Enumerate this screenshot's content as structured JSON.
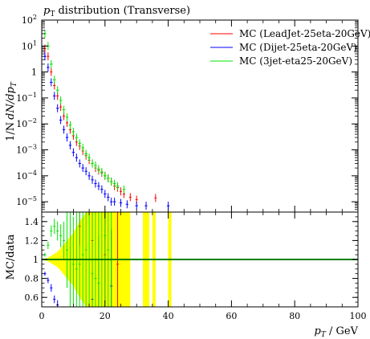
{
  "chart_data": [
    {
      "type": "scatter",
      "panel": "main",
      "title": "pT distribution (Transverse)",
      "title_parts": {
        "italic": "p",
        "sub": "T",
        "rest": " distribution (Transverse)"
      },
      "ylabel": "1/N dN/dpT",
      "ylabel_parts": {
        "a": "1/N",
        "b": "dN/dp",
        "sub": "T"
      },
      "yscale": "log",
      "ylim": [
        4e-06,
        100
      ],
      "xlim": [
        0,
        100
      ],
      "grid": false,
      "legend_position": "top-right",
      "yticks": [
        {
          "v": 100,
          "base": "10",
          "exp": "2"
        },
        {
          "v": 10,
          "base": "10",
          "exp": "1"
        },
        {
          "v": 1,
          "base": "1",
          "exp": ""
        },
        {
          "v": 0.1,
          "base": "10",
          "exp": "−1"
        },
        {
          "v": 0.01,
          "base": "10",
          "exp": "−2"
        },
        {
          "v": 0.001,
          "base": "10",
          "exp": "−3"
        },
        {
          "v": 0.0001,
          "base": "10",
          "exp": "−4"
        },
        {
          "v": 1e-05,
          "base": "10",
          "exp": "−5"
        }
      ],
      "series": [
        {
          "name": "MC (LeadJet-25eta-20GeV)",
          "color": "#ff0000",
          "points": [
            [
              1.0,
              8.0,
              0.0
            ],
            [
              2.0,
              4.0,
              0.0
            ],
            [
              3.0,
              1.0,
              0.0
            ],
            [
              4.0,
              0.3,
              0.0
            ],
            [
              5.0,
              0.12,
              0.0
            ],
            [
              6.0,
              0.045,
              0.0
            ],
            [
              7.0,
              0.02,
              0.0
            ],
            [
              8.0,
              0.011,
              0.0
            ],
            [
              9.0,
              0.006,
              0.0
            ],
            [
              10.0,
              0.0035,
              0.0
            ],
            [
              11.0,
              0.002,
              0.0
            ],
            [
              12.0,
              0.0014,
              0.0
            ],
            [
              13.0,
              0.0009,
              0.0
            ],
            [
              14.0,
              0.0006,
              0.0
            ],
            [
              15.0,
              0.0004,
              0.0
            ],
            [
              16.0,
              0.0003,
              0.0
            ],
            [
              17.0,
              0.0002,
              0.0
            ],
            [
              18.0,
              0.00016,
              0.0
            ],
            [
              19.0,
              0.00013,
              0.0
            ],
            [
              20.0,
              0.0001,
              0.0
            ],
            [
              21.0,
              8e-05,
              0.0
            ],
            [
              22.0,
              6e-05,
              0.0
            ],
            [
              23.0,
              4e-05,
              0.0
            ],
            [
              24.0,
              3.5e-05,
              0.0
            ],
            [
              25.0,
              2.5e-05,
              0.0
            ],
            [
              26.0,
              2e-05,
              0.0
            ],
            [
              28.0,
              1.5e-05,
              0.0
            ],
            [
              30.0,
              1.2e-05,
              0.0
            ],
            [
              36.0,
              1.4e-05,
              0.0
            ]
          ]
        },
        {
          "name": "MC (Dijet-25eta-20GeV)",
          "color": "#0000ff",
          "points": [
            [
              1.0,
              4.0,
              0.0
            ],
            [
              2.0,
              1.5,
              0.0
            ],
            [
              3.0,
              0.4,
              0.0
            ],
            [
              4.0,
              0.12,
              0.0
            ],
            [
              5.0,
              0.04,
              0.0
            ],
            [
              6.0,
              0.014,
              0.0
            ],
            [
              7.0,
              0.006,
              0.0
            ],
            [
              8.0,
              0.003,
              0.0
            ],
            [
              9.0,
              0.0015,
              0.0
            ],
            [
              10.0,
              0.0008,
              0.0
            ],
            [
              11.0,
              0.0005,
              0.0
            ],
            [
              12.0,
              0.0003,
              0.0
            ],
            [
              13.0,
              0.0002,
              0.0
            ],
            [
              14.0,
              0.00015,
              0.0
            ],
            [
              15.0,
              0.0001,
              0.0
            ],
            [
              16.0,
              7e-05,
              0.0
            ],
            [
              17.0,
              5e-05,
              0.0
            ],
            [
              18.0,
              4e-05,
              0.0
            ],
            [
              19.0,
              3e-05,
              0.0
            ],
            [
              20.0,
              2e-05,
              0.0
            ],
            [
              21.0,
              1.5e-05,
              0.0
            ],
            [
              22.0,
              1e-05,
              0.0
            ],
            [
              23.0,
              1e-05,
              0.0
            ],
            [
              25.0,
              9e-06,
              0.0
            ],
            [
              27.0,
              8e-06,
              0.0
            ],
            [
              30.0,
              7e-06,
              0.0
            ],
            [
              33.0,
              7e-06,
              0.0
            ],
            [
              40.0,
              7e-06,
              0.0
            ]
          ]
        },
        {
          "name": "MC (3jet-eta25-20GeV)",
          "color": "#00e600",
          "points": [
            [
              1.0,
              30.0,
              0.0
            ],
            [
              2.0,
              10.0,
              0.0
            ],
            [
              3.0,
              2.0,
              0.0
            ],
            [
              4.0,
              0.5,
              0.0
            ],
            [
              5.0,
              0.2,
              0.0
            ],
            [
              6.0,
              0.08,
              0.0
            ],
            [
              7.0,
              0.035,
              0.0
            ],
            [
              8.0,
              0.018,
              0.0
            ],
            [
              9.0,
              0.009,
              0.0
            ],
            [
              10.0,
              0.005,
              0.0
            ],
            [
              11.0,
              0.003,
              0.0
            ],
            [
              12.0,
              0.0018,
              0.0
            ],
            [
              13.0,
              0.0012,
              0.0
            ],
            [
              14.0,
              0.0007,
              0.0
            ],
            [
              15.0,
              0.0005,
              0.0
            ],
            [
              16.0,
              0.0003,
              0.0
            ],
            [
              17.0,
              0.00025,
              0.0
            ],
            [
              18.0,
              0.00018,
              0.0
            ],
            [
              19.0,
              0.00014,
              0.0
            ],
            [
              20.0,
              0.0001,
              0.0
            ],
            [
              21.0,
              8e-05,
              0.0
            ],
            [
              22.0,
              6e-05,
              0.0
            ],
            [
              23.0,
              5e-05,
              0.0
            ],
            [
              24.0,
              4e-05,
              0.0
            ],
            [
              26.0,
              3e-05,
              0.0
            ]
          ]
        }
      ]
    },
    {
      "type": "scatter",
      "panel": "ratio",
      "ylabel": "MC/data",
      "xlabel": "pT / GeV",
      "xlabel_parts": {
        "italic": "p",
        "sub": "T",
        "rest": " / GeV"
      },
      "xlim": [
        0,
        100
      ],
      "ylim": [
        0.5,
        1.5
      ],
      "reference_line": 1,
      "reference_color": "#008000",
      "band_color": "#ffff00",
      "xticks": [
        0,
        20,
        40,
        60,
        80,
        100
      ],
      "xtick_labels": [
        "0",
        "20",
        "40",
        "60",
        "80",
        "100"
      ],
      "yticks": [
        0.6,
        0.8,
        1.0,
        1.2,
        1.4
      ],
      "ytick_labels": [
        "0.6",
        "0.8",
        "1",
        "1.2",
        "1.4"
      ],
      "band": [
        [
          0.0,
          1.0,
          1.0,
          1.0
        ],
        [
          1.0,
          1.0,
          0.99,
          1.01
        ],
        [
          2.0,
          1.0,
          0.98,
          1.02
        ],
        [
          3.0,
          1.0,
          0.96,
          1.04
        ],
        [
          4.0,
          1.0,
          0.94,
          1.06
        ],
        [
          5.0,
          1.0,
          0.92,
          1.08
        ],
        [
          6.0,
          1.0,
          0.88,
          1.12
        ],
        [
          7.0,
          1.0,
          0.84,
          1.16
        ],
        [
          8.0,
          1.0,
          0.8,
          1.2
        ],
        [
          9.0,
          1.0,
          0.76,
          1.24
        ],
        [
          10.0,
          1.0,
          0.72,
          1.28
        ],
        [
          11.0,
          1.0,
          0.66,
          1.34
        ],
        [
          12.0,
          1.0,
          0.6,
          1.4
        ],
        [
          13.0,
          1.0,
          0.55,
          1.45
        ],
        [
          14.0,
          1.0,
          0.5,
          1.5
        ],
        [
          27.0,
          1.0,
          0.5,
          1.5
        ],
        [
          28.0,
          1.0,
          0.5,
          1.5
        ]
      ],
      "band_blocks": [
        [
          32.0,
          34.0
        ],
        [
          35.0,
          36.0
        ],
        [
          40.0,
          41.0
        ]
      ],
      "series": [
        {
          "name": "MC (LeadJet-25eta-20GeV)",
          "color": "#ff0000",
          "points": [
            [
              12.0,
              1.35,
              0.2
            ],
            [
              16.0,
              1.2,
              0.4
            ],
            [
              20.0,
              1.05,
              0.5
            ],
            [
              24.0,
              0.95,
              0.6
            ]
          ]
        },
        {
          "name": "MC (Dijet-25eta-20GeV)",
          "color": "#0000ff",
          "points": [
            [
              1.0,
              0.85,
              0.02
            ],
            [
              2.0,
              0.78,
              0.03
            ],
            [
              3.0,
              0.7,
              0.04
            ],
            [
              4.0,
              0.58,
              0.04
            ],
            [
              5.0,
              0.52,
              0.05
            ],
            [
              6.0,
              0.49,
              0.05
            ],
            [
              16.0,
              0.58,
              0.3
            ],
            [
              18.0,
              0.75,
              0.5
            ],
            [
              22.0,
              0.72,
              0.6
            ]
          ]
        },
        {
          "name": "MC (3jet-eta25-20GeV)",
          "color": "#00e600",
          "points": [
            [
              1.0,
              1.05,
              0.02
            ],
            [
              2.0,
              1.15,
              0.04
            ],
            [
              3.0,
              1.3,
              0.06
            ],
            [
              4.0,
              1.35,
              0.08
            ],
            [
              5.0,
              1.3,
              0.1
            ],
            [
              6.0,
              1.25,
              0.12
            ],
            [
              7.0,
              1.2,
              0.2
            ],
            [
              8.0,
              1.1,
              0.4
            ],
            [
              9.0,
              1.0,
              0.5
            ],
            [
              10.0,
              0.95,
              0.5
            ],
            [
              11.0,
              0.9,
              0.6
            ],
            [
              12.0,
              0.95,
              0.7
            ],
            [
              13.0,
              1.05,
              0.8
            ],
            [
              14.0,
              1.1,
              0.9
            ],
            [
              15.0,
              1.0,
              0.9
            ],
            [
              16.0,
              0.85,
              1.0
            ],
            [
              17.0,
              0.8,
              1.0
            ],
            [
              18.0,
              0.75,
              1.0
            ],
            [
              19.0,
              1.0,
              1.0
            ],
            [
              20.0,
              1.25,
              1.0
            ],
            [
              21.0,
              1.1,
              1.0
            ],
            [
              22.0,
              1.0,
              1.0
            ]
          ]
        }
      ]
    }
  ]
}
